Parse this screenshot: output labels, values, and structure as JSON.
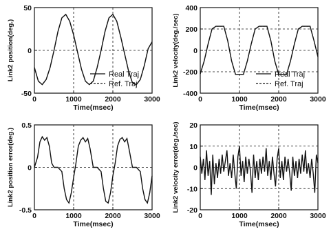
{
  "chart_data": [
    {
      "type": "line",
      "xlabel": "Time(msec)",
      "ylabel": "Link2 position(deg.)",
      "xlim": [
        0,
        3000
      ],
      "ylim": [
        -50,
        50
      ],
      "xticks": [
        "0",
        "1000",
        "2000",
        "3000"
      ],
      "yticks": [
        "50",
        "0",
        "-50"
      ],
      "grid": true,
      "legend_position": "bottom-right",
      "series": [
        {
          "name": "Real Traj",
          "style": "solid",
          "x": [
            0,
            100,
            200,
            300,
            400,
            500,
            600,
            700,
            800,
            900,
            1000,
            1100,
            1200,
            1300,
            1400,
            1500,
            1600,
            1700,
            1800,
            1900,
            2000,
            2100,
            2200,
            2300,
            2400,
            2500,
            2600,
            2700,
            2800,
            2900,
            3000
          ],
          "y": [
            -20,
            -36,
            -40,
            -34,
            -20,
            0,
            22,
            38,
            42,
            34,
            18,
            -2,
            -22,
            -36,
            -40,
            -36,
            -20,
            0,
            22,
            38,
            42,
            34,
            16,
            -4,
            -24,
            -38,
            -40,
            -34,
            -18,
            2,
            10
          ]
        },
        {
          "name": "Ref. Traj",
          "style": "dashed",
          "x": [
            0,
            100,
            200,
            300,
            400,
            500,
            600,
            700,
            800,
            900,
            1000,
            1100,
            1200,
            1300,
            1400,
            1500,
            1600,
            1700,
            1800,
            1900,
            2000,
            2100,
            2200,
            2300,
            2400,
            2500,
            2600,
            2700,
            2800,
            2900,
            3000
          ],
          "y": [
            -20,
            -36,
            -40,
            -34,
            -20,
            0,
            22,
            38,
            42,
            34,
            18,
            -2,
            -22,
            -36,
            -40,
            -36,
            -20,
            0,
            22,
            38,
            42,
            34,
            16,
            -4,
            -24,
            -38,
            -40,
            -34,
            -18,
            2,
            10
          ]
        }
      ]
    },
    {
      "type": "line",
      "xlabel": "Time(msec)",
      "ylabel": "Link2 velocity(deg./sec)",
      "xlim": [
        0,
        3000
      ],
      "ylim": [
        -400,
        400
      ],
      "xticks": [
        "0",
        "1000",
        "2000",
        "3000"
      ],
      "yticks": [
        "400",
        "200",
        "0",
        "-200",
        "-400"
      ],
      "grid": true,
      "legend_position": "bottom-right",
      "series": [
        {
          "name": "Real Traj",
          "style": "solid",
          "x": [
            0,
            100,
            200,
            300,
            400,
            500,
            600,
            700,
            800,
            900,
            1000,
            1100,
            1200,
            1300,
            1400,
            1500,
            1600,
            1700,
            1800,
            1900,
            2000,
            2100,
            2200,
            2300,
            2400,
            2500,
            2600,
            2700,
            2800,
            2900,
            3000
          ],
          "y": [
            -220,
            -100,
            60,
            200,
            225,
            225,
            225,
            90,
            -100,
            -225,
            -225,
            -225,
            -100,
            60,
            200,
            225,
            225,
            225,
            90,
            -100,
            -225,
            -225,
            -225,
            -100,
            60,
            200,
            225,
            225,
            225,
            90,
            -60
          ]
        },
        {
          "name": "Ref. Traj",
          "style": "dashed",
          "x": [
            0,
            100,
            200,
            300,
            400,
            500,
            600,
            700,
            800,
            900,
            1000,
            1100,
            1200,
            1300,
            1400,
            1500,
            1600,
            1700,
            1800,
            1900,
            2000,
            2100,
            2200,
            2300,
            2400,
            2500,
            2600,
            2700,
            2800,
            2900,
            3000
          ],
          "y": [
            -220,
            -100,
            60,
            200,
            225,
            225,
            225,
            90,
            -100,
            -225,
            -225,
            -225,
            -100,
            60,
            200,
            225,
            225,
            225,
            90,
            -100,
            -225,
            -225,
            -225,
            -100,
            60,
            200,
            225,
            225,
            225,
            90,
            -60
          ]
        }
      ]
    },
    {
      "type": "line",
      "xlabel": "Time(msec)",
      "ylabel": "Link2 position error(deg.)",
      "xlim": [
        0,
        3000
      ],
      "ylim": [
        -0.5,
        0.5
      ],
      "xticks": [
        "0",
        "1000",
        "2000",
        "3000"
      ],
      "yticks": [
        "0.5",
        "0",
        "-0.5"
      ],
      "grid": true,
      "series": [
        {
          "name": "",
          "style": "solid",
          "x": [
            0,
            80,
            140,
            200,
            260,
            320,
            380,
            440,
            500,
            600,
            700,
            760,
            820,
            880,
            940,
            1000,
            1060,
            1120,
            1180,
            1240,
            1300,
            1360,
            1420,
            1500,
            1600,
            1700,
            1760,
            1820,
            1880,
            1940,
            2000,
            2060,
            2120,
            2180,
            2240,
            2300,
            2360,
            2420,
            2500,
            2600,
            2700,
            2760,
            2820,
            2880,
            2940,
            3000
          ],
          "y": [
            0,
            0.12,
            0.3,
            0.36,
            0.32,
            0.35,
            0.25,
            0.05,
            0,
            0,
            -0.05,
            -0.25,
            -0.38,
            -0.42,
            -0.3,
            -0.12,
            0.05,
            0.25,
            0.32,
            0.35,
            0.3,
            0.34,
            0.22,
            0,
            0,
            -0.05,
            -0.25,
            -0.4,
            -0.42,
            -0.3,
            -0.1,
            0.05,
            0.25,
            0.33,
            0.35,
            0.3,
            0.34,
            0.2,
            0,
            0,
            -0.05,
            -0.25,
            -0.38,
            -0.42,
            -0.3,
            -0.1
          ]
        }
      ]
    },
    {
      "type": "line",
      "xlabel": "Time(msec)",
      "ylabel": "Link2 velocity error(deg./sec)",
      "xlim": [
        0,
        3000
      ],
      "ylim": [
        -20,
        20
      ],
      "xticks": [
        "0",
        "1000",
        "2000",
        "3000"
      ],
      "yticks": [
        "20",
        "10",
        "0",
        "-10",
        "-20"
      ],
      "grid": true,
      "series": [
        {
          "name": "",
          "style": "solid",
          "x": [
            0,
            40,
            80,
            120,
            160,
            200,
            240,
            280,
            320,
            360,
            400,
            440,
            480,
            520,
            560,
            600,
            640,
            680,
            720,
            760,
            800,
            840,
            880,
            920,
            960,
            1000,
            1040,
            1080,
            1120,
            1160,
            1200,
            1240,
            1280,
            1320,
            1360,
            1400,
            1440,
            1480,
            1520,
            1560,
            1600,
            1640,
            1680,
            1720,
            1760,
            1800,
            1840,
            1880,
            1920,
            1960,
            2000,
            2040,
            2080,
            2120,
            2160,
            2200,
            2240,
            2280,
            2320,
            2360,
            2400,
            2440,
            2480,
            2520,
            2560,
            2600,
            2640,
            2680,
            2720,
            2760,
            2800,
            2840,
            2880,
            2920,
            2960,
            3000
          ],
          "y": [
            5,
            -3,
            4,
            -6,
            8,
            -4,
            3,
            -13,
            6,
            -8,
            2,
            -5,
            4,
            -3,
            6,
            -2,
            3,
            8,
            -4,
            2,
            -5,
            6,
            -3,
            -10,
            5,
            10,
            -4,
            3,
            -7,
            5,
            -3,
            4,
            -2,
            -12,
            6,
            -5,
            3,
            -6,
            4,
            -3,
            5,
            -2,
            9,
            -4,
            3,
            -6,
            5,
            -3,
            -9,
            4,
            9,
            -5,
            3,
            -6,
            5,
            -2,
            4,
            -3,
            -11,
            5,
            -4,
            3,
            -5,
            4,
            -3,
            6,
            -2,
            8,
            -3,
            2,
            -5,
            4,
            -3,
            -12,
            6,
            2
          ]
        }
      ]
    }
  ]
}
